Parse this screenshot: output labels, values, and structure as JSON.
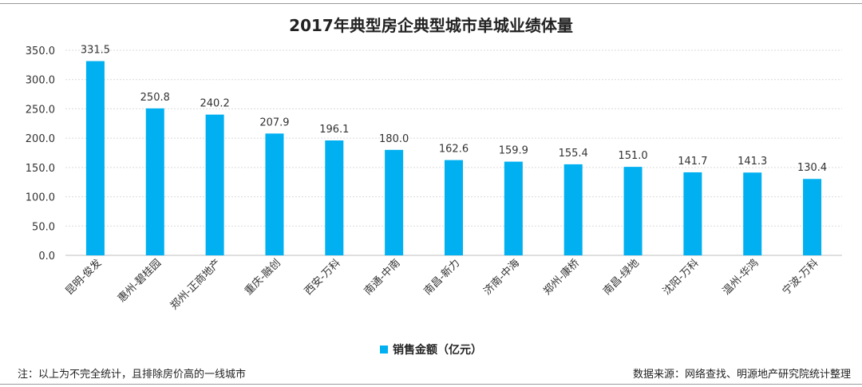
{
  "title": "2017年典型房企典型城市单城业绩体量",
  "legend_label": "销售金额（亿元）",
  "note_left": "注：以上为不完全统计，且排除房价高的一线城市",
  "note_right": "数据来源：网络查找、明源地产研究院统计整理",
  "colors": {
    "bar": "#00b0f0",
    "grid": "#d9d9d9",
    "axis": "#bfbfbf"
  },
  "chart_data": {
    "type": "bar",
    "title": "2017年典型房企典型城市单城业绩体量",
    "categories": [
      "昆明-俊发",
      "惠州-碧桂园",
      "郑州-正商地产",
      "重庆-融创",
      "西安-万科",
      "南通-中南",
      "南昌-新力",
      "济南-中海",
      "郑州-康桥",
      "南昌-绿地",
      "沈阳-万科",
      "温州-华鸿",
      "宁波-万科"
    ],
    "series": [
      {
        "name": "销售金额（亿元）",
        "values": [
          331.5,
          250.8,
          240.2,
          207.9,
          196.1,
          180.0,
          162.6,
          159.9,
          155.4,
          151.0,
          141.7,
          141.3,
          130.4
        ]
      }
    ],
    "ylim": [
      0,
      350
    ],
    "yticks": [
      "0.0",
      "50.0",
      "100.0",
      "150.0",
      "200.0",
      "250.0",
      "300.0",
      "350.0"
    ],
    "grid": true,
    "legend_position": "bottom",
    "data_labels": true
  }
}
